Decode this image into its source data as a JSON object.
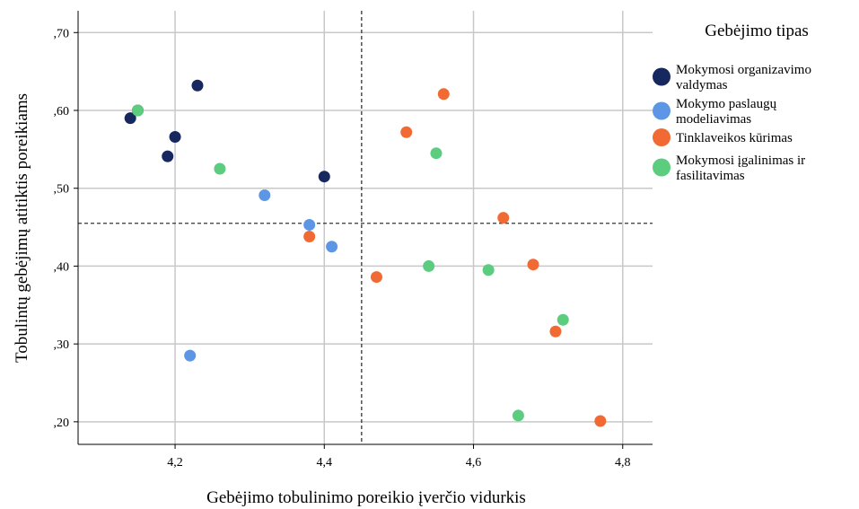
{
  "chart_data": {
    "type": "scatter",
    "xlabel": "Gebėjimo tobulinimo poreikio įverčio vidurkis",
    "ylabel": "Tobulintų gebėjimų atitiktis poreikiams",
    "xlim": [
      4.07,
      4.84
    ],
    "ylim": [
      0.171,
      0.728
    ],
    "x_ticks": [
      4.2,
      4.4,
      4.6,
      4.8
    ],
    "x_tick_labels": [
      "4,2",
      "4,4",
      "4,6",
      "4,8"
    ],
    "y_ticks": [
      0.2,
      0.3,
      0.4,
      0.5,
      0.6,
      0.7
    ],
    "y_tick_labels": [
      ",20",
      ",30",
      ",40",
      ",50",
      ",60",
      ",70"
    ],
    "grid": true,
    "reference_lines": {
      "x": 4.45,
      "y": 0.455
    },
    "legend": {
      "title": "Gebėjimo tipas",
      "position": "right"
    },
    "series": [
      {
        "name_lines": [
          "Mokymosi organizavimo",
          "valdymas"
        ],
        "color": "#17285f",
        "points": [
          [
            4.14,
            0.59
          ],
          [
            4.15,
            0.6
          ],
          [
            4.19,
            0.541
          ],
          [
            4.2,
            0.566
          ],
          [
            4.23,
            0.632
          ],
          [
            4.4,
            0.515
          ]
        ]
      },
      {
        "name_lines": [
          "Mokymo paslaugų",
          "modeliavimas"
        ],
        "color": "#5e96e6",
        "points": [
          [
            4.22,
            0.285
          ],
          [
            4.32,
            0.491
          ],
          [
            4.38,
            0.453
          ],
          [
            4.41,
            0.425
          ]
        ]
      },
      {
        "name_lines": [
          "Tinklaveikos kūrimas"
        ],
        "color": "#f26a33",
        "points": [
          [
            4.38,
            0.438
          ],
          [
            4.47,
            0.386
          ],
          [
            4.51,
            0.572
          ],
          [
            4.56,
            0.621
          ],
          [
            4.64,
            0.462
          ],
          [
            4.68,
            0.402
          ],
          [
            4.71,
            0.316
          ],
          [
            4.77,
            0.201
          ]
        ]
      },
      {
        "name_lines": [
          "Mokymosi įgalinimas ir",
          "fasilitavimas"
        ],
        "color": "#5ccc7f",
        "points": [
          [
            4.15,
            0.6
          ],
          [
            4.26,
            0.525
          ],
          [
            4.54,
            0.4
          ],
          [
            4.55,
            0.545
          ],
          [
            4.62,
            0.395
          ],
          [
            4.66,
            0.208
          ],
          [
            4.72,
            0.331
          ]
        ]
      }
    ]
  }
}
